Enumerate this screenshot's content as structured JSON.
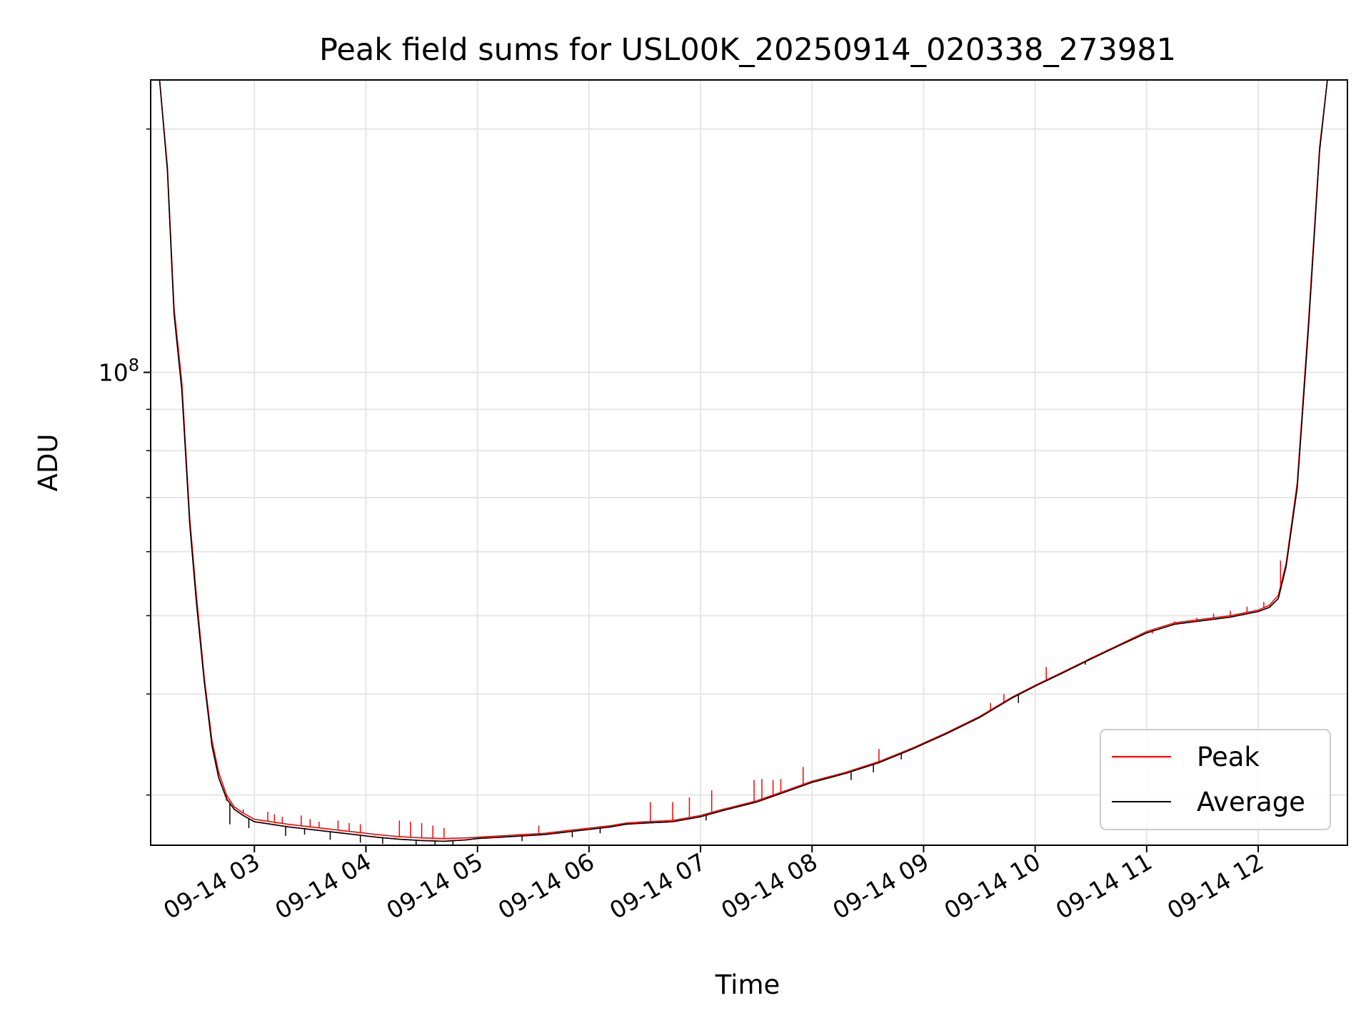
{
  "chart_data": {
    "type": "line",
    "title": "Peak field sums for USL00K_20250914_020338_273981",
    "xlabel": "Time",
    "ylabel": "ADU",
    "x_ticks": [
      "09-14 03",
      "09-14 04",
      "09-14 05",
      "09-14 06",
      "09-14 07",
      "09-14 08",
      "09-14 09",
      "09-14 10",
      "09-14 11",
      "09-14 12"
    ],
    "x_tick_hours": [
      3,
      4,
      5,
      6,
      7,
      8,
      9,
      10,
      11,
      12
    ],
    "xlim_hours": [
      2.07,
      12.8
    ],
    "y_scale": "log",
    "ylim": [
      26000000,
      230000000
    ],
    "y_major_tick": {
      "base": "10",
      "exponent": "8",
      "value": 100000000
    },
    "y_minor_ticks": [
      30000000,
      40000000,
      50000000,
      60000000,
      70000000,
      80000000,
      90000000,
      200000000
    ],
    "grid": true,
    "legend": {
      "position": "bottom-right",
      "entries": [
        "Peak",
        "Average"
      ]
    },
    "series": [
      {
        "name": "Peak",
        "color": "#ff0000",
        "x_hours": [
          2.15,
          2.22,
          2.28,
          2.35,
          2.42,
          2.48,
          2.55,
          2.62,
          2.68,
          2.75,
          2.82,
          2.9,
          3.0,
          3.15,
          3.3,
          3.5,
          3.7,
          3.9,
          4.1,
          4.3,
          4.5,
          4.7,
          4.9,
          5.0,
          5.2,
          5.4,
          5.6,
          5.8,
          6.0,
          6.2,
          6.33,
          6.5,
          6.75,
          7.0,
          7.2,
          7.5,
          7.8,
          8.0,
          8.3,
          8.6,
          8.9,
          9.2,
          9.5,
          9.8,
          10.0,
          10.25,
          10.5,
          10.75,
          11.0,
          11.25,
          11.5,
          11.75,
          12.0,
          12.1,
          12.18,
          12.25,
          12.35,
          12.45,
          12.55,
          12.62
        ],
        "y": [
          230000000,
          180000000,
          120000000,
          97000000,
          66000000,
          53000000,
          42000000,
          35000000,
          32000000,
          30000000,
          29000000,
          28500000,
          28000000,
          27800000,
          27600000,
          27400000,
          27200000,
          27000000,
          26800000,
          26650000,
          26550000,
          26500000,
          26550000,
          26600000,
          26700000,
          26800000,
          26900000,
          27100000,
          27300000,
          27500000,
          27700000,
          27800000,
          27900000,
          28300000,
          28800000,
          29500000,
          30500000,
          31200000,
          32000000,
          33000000,
          34300000,
          35800000,
          37500000,
          39700000,
          41000000,
          42600000,
          44300000,
          46000000,
          47800000,
          49000000,
          49500000,
          50000000,
          50800000,
          51500000,
          53000000,
          58000000,
          73000000,
          115000000,
          190000000,
          230000000
        ],
        "spikes": [
          {
            "x_hours": 2.75,
            "y_top": 29500000
          },
          {
            "x_hours": 2.83,
            "y_top": 29000000
          },
          {
            "x_hours": 2.9,
            "y_top": 28800000
          },
          {
            "x_hours": 3.12,
            "y_top": 28600000
          },
          {
            "x_hours": 3.18,
            "y_top": 28400000
          },
          {
            "x_hours": 3.25,
            "y_top": 28200000
          },
          {
            "x_hours": 3.42,
            "y_top": 28300000
          },
          {
            "x_hours": 3.5,
            "y_top": 28000000
          },
          {
            "x_hours": 3.58,
            "y_top": 27800000
          },
          {
            "x_hours": 3.75,
            "y_top": 27900000
          },
          {
            "x_hours": 3.85,
            "y_top": 27700000
          },
          {
            "x_hours": 3.95,
            "y_top": 27600000
          },
          {
            "x_hours": 4.3,
            "y_top": 27900000
          },
          {
            "x_hours": 4.4,
            "y_top": 27800000
          },
          {
            "x_hours": 4.5,
            "y_top": 27700000
          },
          {
            "x_hours": 4.6,
            "y_top": 27500000
          },
          {
            "x_hours": 4.7,
            "y_top": 27300000
          },
          {
            "x_hours": 5.55,
            "y_top": 27500000
          },
          {
            "x_hours": 6.55,
            "y_top": 29400000
          },
          {
            "x_hours": 6.75,
            "y_top": 29400000
          },
          {
            "x_hours": 6.9,
            "y_top": 29800000
          },
          {
            "x_hours": 7.1,
            "y_top": 30400000
          },
          {
            "x_hours": 7.48,
            "y_top": 31300000
          },
          {
            "x_hours": 7.55,
            "y_top": 31400000
          },
          {
            "x_hours": 7.65,
            "y_top": 31300000
          },
          {
            "x_hours": 7.72,
            "y_top": 31400000
          },
          {
            "x_hours": 7.92,
            "y_top": 32500000
          },
          {
            "x_hours": 8.6,
            "y_top": 34200000
          },
          {
            "x_hours": 9.6,
            "y_top": 39000000
          },
          {
            "x_hours": 9.72,
            "y_top": 40000000
          },
          {
            "x_hours": 10.1,
            "y_top": 43200000
          },
          {
            "x_hours": 11.05,
            "y_top": 47500000
          },
          {
            "x_hours": 11.25,
            "y_top": 49200000
          },
          {
            "x_hours": 11.45,
            "y_top": 49700000
          },
          {
            "x_hours": 11.6,
            "y_top": 50300000
          },
          {
            "x_hours": 11.75,
            "y_top": 50700000
          },
          {
            "x_hours": 11.9,
            "y_top": 51300000
          },
          {
            "x_hours": 12.05,
            "y_top": 52000000
          },
          {
            "x_hours": 12.2,
            "y_top": 58500000
          }
        ]
      },
      {
        "name": "Average",
        "color": "#000000",
        "x_hours": [
          2.15,
          2.22,
          2.28,
          2.35,
          2.42,
          2.48,
          2.55,
          2.62,
          2.68,
          2.75,
          2.82,
          2.9,
          3.0,
          3.15,
          3.3,
          3.5,
          3.7,
          3.9,
          4.1,
          4.3,
          4.5,
          4.7,
          4.9,
          5.0,
          5.2,
          5.4,
          5.6,
          5.8,
          6.0,
          6.2,
          6.33,
          6.5,
          6.75,
          7.0,
          7.2,
          7.5,
          7.8,
          8.0,
          8.3,
          8.6,
          8.9,
          9.2,
          9.5,
          9.8,
          10.0,
          10.25,
          10.5,
          10.75,
          11.0,
          11.25,
          11.5,
          11.75,
          12.0,
          12.1,
          12.18,
          12.25,
          12.35,
          12.45,
          12.55,
          12.62
        ],
        "y": [
          230000000,
          178000000,
          118000000,
          95000000,
          65000000,
          52000000,
          41500000,
          34500000,
          31500000,
          29700000,
          28800000,
          28300000,
          27800000,
          27600000,
          27400000,
          27200000,
          27000000,
          26800000,
          26600000,
          26450000,
          26350000,
          26300000,
          26400000,
          26500000,
          26600000,
          26700000,
          26800000,
          27000000,
          27200000,
          27400000,
          27600000,
          27700000,
          27800000,
          28200000,
          28700000,
          29400000,
          30400000,
          31100000,
          31900000,
          32900000,
          34200000,
          35700000,
          37400000,
          39600000,
          40900000,
          42500000,
          44200000,
          45900000,
          47600000,
          48800000,
          49300000,
          49800000,
          50600000,
          51200000,
          52500000,
          57500000,
          72000000,
          113000000,
          188000000,
          230000000
        ],
        "dips": [
          {
            "x_hours": 2.78,
            "y_bottom": 27600000
          },
          {
            "x_hours": 2.95,
            "y_bottom": 27300000
          },
          {
            "x_hours": 3.28,
            "y_bottom": 26700000
          },
          {
            "x_hours": 3.45,
            "y_bottom": 26800000
          },
          {
            "x_hours": 3.68,
            "y_bottom": 26400000
          },
          {
            "x_hours": 3.95,
            "y_bottom": 26200000
          },
          {
            "x_hours": 4.15,
            "y_bottom": 26100000
          },
          {
            "x_hours": 4.45,
            "y_bottom": 26000000
          },
          {
            "x_hours": 4.62,
            "y_bottom": 26000000
          },
          {
            "x_hours": 4.78,
            "y_bottom": 26000000
          },
          {
            "x_hours": 5.4,
            "y_bottom": 26300000
          },
          {
            "x_hours": 5.85,
            "y_bottom": 26600000
          },
          {
            "x_hours": 6.1,
            "y_bottom": 26900000
          },
          {
            "x_hours": 7.05,
            "y_bottom": 27900000
          },
          {
            "x_hours": 8.35,
            "y_bottom": 31300000
          },
          {
            "x_hours": 8.55,
            "y_bottom": 32000000
          },
          {
            "x_hours": 8.8,
            "y_bottom": 33200000
          },
          {
            "x_hours": 9.85,
            "y_bottom": 39000000
          },
          {
            "x_hours": 10.45,
            "y_bottom": 43500000
          },
          {
            "x_hours": 10.6,
            "y_bottom": 44800000
          }
        ]
      }
    ]
  }
}
